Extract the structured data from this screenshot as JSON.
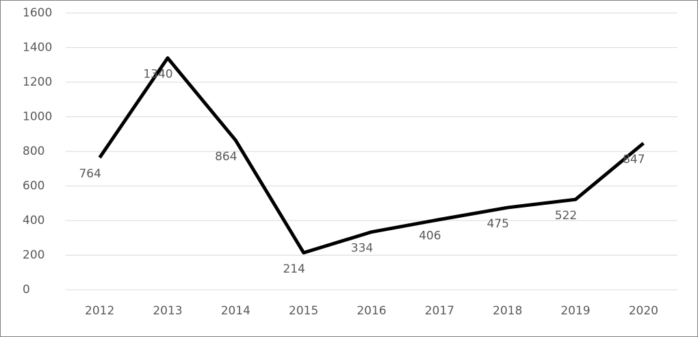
{
  "chart_data": {
    "type": "line",
    "categories": [
      "2012",
      "2013",
      "2014",
      "2015",
      "2016",
      "2017",
      "2018",
      "2019",
      "2020"
    ],
    "values": [
      764,
      1340,
      864,
      214,
      334,
      406,
      475,
      522,
      847
    ],
    "color": "#000000",
    "ylim": [
      0,
      1600
    ],
    "yticks": [
      0,
      200,
      400,
      600,
      800,
      1000,
      1200,
      1400,
      1600
    ],
    "grid": true
  }
}
